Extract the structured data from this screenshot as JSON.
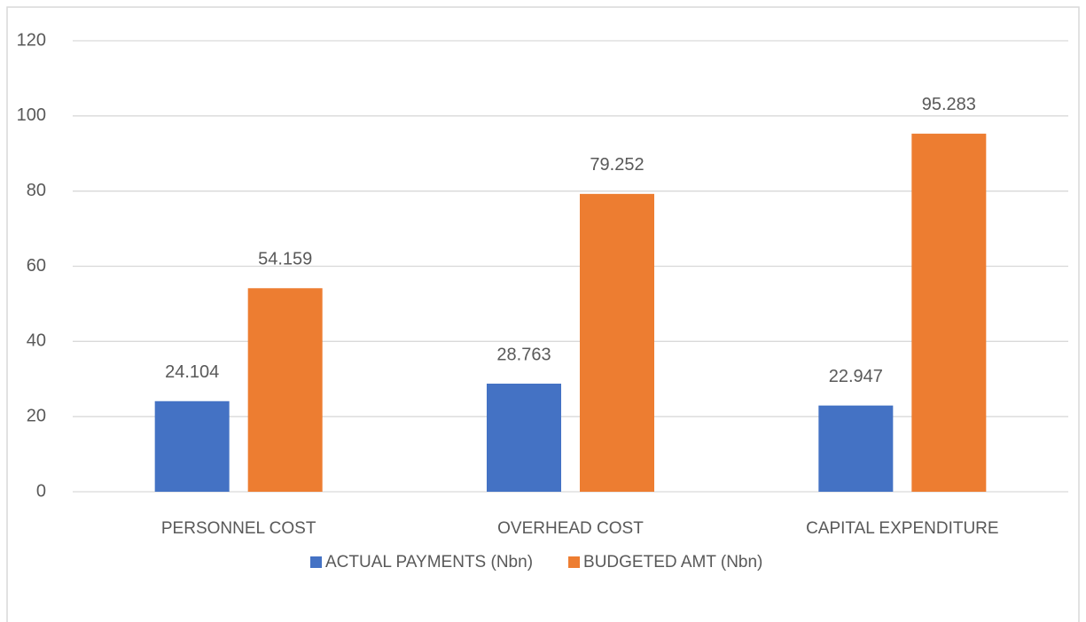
{
  "chart_data": {
    "type": "bar",
    "categories": [
      "PERSONNEL COST",
      "OVERHEAD COST",
      "CAPITAL EXPENDITURE"
    ],
    "series": [
      {
        "name": "ACTUAL PAYMENTS (Nbn)",
        "color": "#4472c4",
        "values": [
          24.104,
          28.763,
          22.947
        ]
      },
      {
        "name": "BUDGETED AMT (Nbn)",
        "color": "#ed7d31",
        "values": [
          54.159,
          79.252,
          95.283
        ]
      }
    ],
    "ylim": [
      0,
      120
    ],
    "yticks": [
      0,
      20,
      40,
      60,
      80,
      100,
      120
    ],
    "grid": true,
    "legend": "bottom"
  }
}
